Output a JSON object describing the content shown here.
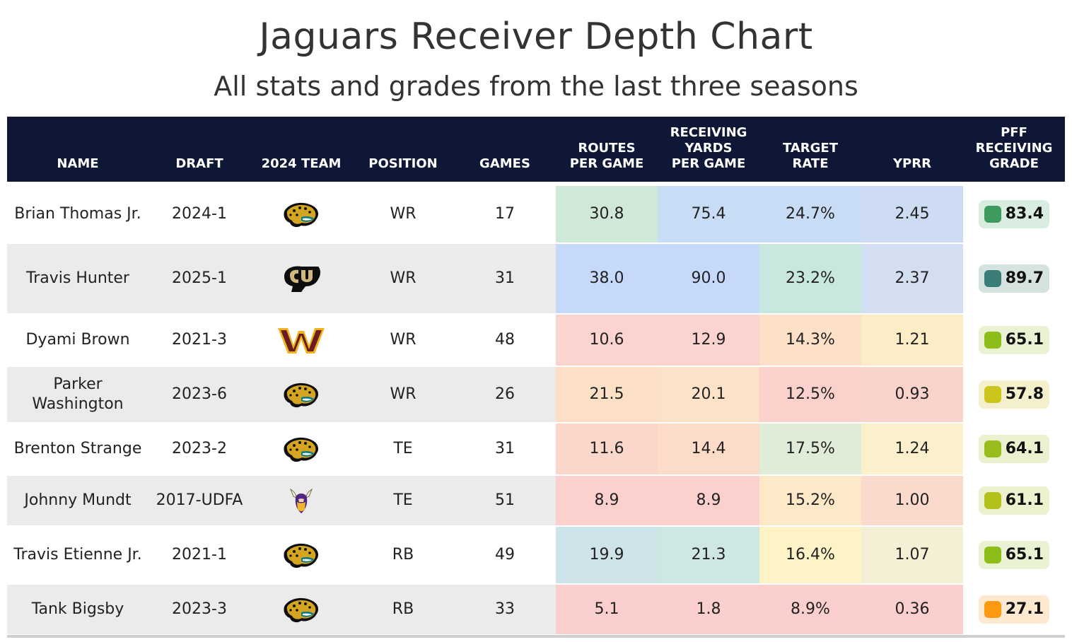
{
  "title": "Jaguars Receiver Depth Chart",
  "subtitle": "All stats and grades from the last three seasons",
  "headers": {
    "name": "NAME",
    "draft": "DRAFT",
    "team": "2024 TEAM",
    "position": "POSITION",
    "games": "GAMES",
    "routes": "ROUTES\nPER GAME",
    "yards": "RECEIVING\nYARDS\nPER GAME",
    "target": "TARGET\nRATE",
    "yprr": "YPRR",
    "grade": "PFF\nRECEIVING\nGRADE"
  },
  "chart_data": {
    "type": "table",
    "columns": [
      "NAME",
      "DRAFT",
      "2024 TEAM",
      "POSITION",
      "GAMES",
      "ROUTES PER GAME",
      "RECEIVING YARDS PER GAME",
      "TARGET RATE",
      "YPRR",
      "PFF RECEIVING GRADE"
    ],
    "rows": [
      {
        "name": "Brian Thomas Jr.",
        "draft": "2024-1",
        "team_icon": "jaguars-logo-icon",
        "position": "WR",
        "games": "17",
        "routes": "30.8",
        "yards": "75.4",
        "target": "24.7%",
        "yprr": "2.45",
        "grade": "83.4",
        "colors": {
          "routes": "#cfe8d8",
          "yards": "#c9dcf6",
          "target": "#c9dcf6",
          "yprr": "#cddcf2",
          "grade_bg": "#d9ece0",
          "grade_dot": "#3e9a5e"
        }
      },
      {
        "name": "Travis Hunter",
        "draft": "2025-1",
        "team_icon": "colorado-buffaloes-logo-icon",
        "position": "WR",
        "games": "31",
        "routes": "38.0",
        "yards": "90.0",
        "target": "23.2%",
        "yprr": "2.37",
        "grade": "89.7",
        "colors": {
          "routes": "#c6d9fa",
          "yards": "#c6d9fa",
          "target": "#c8e8df",
          "yprr": "#d3def0",
          "grade_bg": "#d4e2e0",
          "grade_dot": "#3a7c76"
        }
      },
      {
        "name": "Dyami Brown",
        "draft": "2021-3",
        "team_icon": "commanders-logo-icon",
        "position": "WR",
        "games": "48",
        "routes": "10.6",
        "yards": "12.9",
        "target": "14.3%",
        "yprr": "1.21",
        "grade": "65.1",
        "colors": {
          "routes": "#fbd3cf",
          "yards": "#fbd3cf",
          "target": "#fde0c8",
          "yprr": "#fdedc6",
          "grade_bg": "#e9f2d2",
          "grade_dot": "#8ebd1a"
        }
      },
      {
        "name": "Parker Washington",
        "draft": "2023-6",
        "team_icon": "jaguars-logo-icon",
        "position": "WR",
        "games": "26",
        "routes": "21.5",
        "yards": "20.1",
        "target": "12.5%",
        "yprr": "0.93",
        "grade": "57.8",
        "colors": {
          "routes": "#fce0c6",
          "yards": "#fce3c8",
          "target": "#fbd1cb",
          "yprr": "#fbd3cd",
          "grade_bg": "#f3f0cb",
          "grade_dot": "#cbc51c"
        }
      },
      {
        "name": "Brenton Strange",
        "draft": "2023-2",
        "team_icon": "jaguars-logo-icon",
        "position": "TE",
        "games": "31",
        "routes": "11.6",
        "yards": "14.4",
        "target": "17.5%",
        "yprr": "1.24",
        "grade": "64.1",
        "colors": {
          "routes": "#fbd6cb",
          "yards": "#fcdcc8",
          "target": "#e1ecd8",
          "yprr": "#fbf0cb",
          "grade_bg": "#ebf1cf",
          "grade_dot": "#98bc1c"
        }
      },
      {
        "name": "Johnny Mundt",
        "draft": "2017-UDFA",
        "team_icon": "vikings-logo-icon",
        "position": "TE",
        "games": "51",
        "routes": "8.9",
        "yards": "8.9",
        "target": "15.2%",
        "yprr": "1.00",
        "grade": "61.1",
        "colors": {
          "routes": "#fbd0cd",
          "yards": "#fbd0cd",
          "target": "#fde8c7",
          "yprr": "#fbdacd",
          "grade_bg": "#eef1cd",
          "grade_dot": "#b3bf1a"
        }
      },
      {
        "name": "Travis Etienne Jr.",
        "draft": "2021-1",
        "team_icon": "jaguars-logo-icon",
        "position": "RB",
        "games": "49",
        "routes": "19.9",
        "yards": "21.3",
        "target": "16.4%",
        "yprr": "1.07",
        "grade": "65.1",
        "colors": {
          "routes": "#cfe3ea",
          "yards": "#cfe7e3",
          "target": "#fdf3c6",
          "yprr": "#f5efd6",
          "grade_bg": "#e9f2d2",
          "grade_dot": "#8ebd1a"
        }
      },
      {
        "name": "Tank Bigsby",
        "draft": "2023-3",
        "team_icon": "jaguars-logo-icon",
        "position": "RB",
        "games": "33",
        "routes": "5.1",
        "yards": "1.8",
        "target": "8.9%",
        "yprr": "0.36",
        "grade": "27.1",
        "colors": {
          "routes": "#fbcfcd",
          "yards": "#fbcfcd",
          "target": "#fbcfcd",
          "yprr": "#fbcfcd",
          "grade_bg": "#fde9cf",
          "grade_dot": "#fb9a12"
        }
      }
    ]
  }
}
